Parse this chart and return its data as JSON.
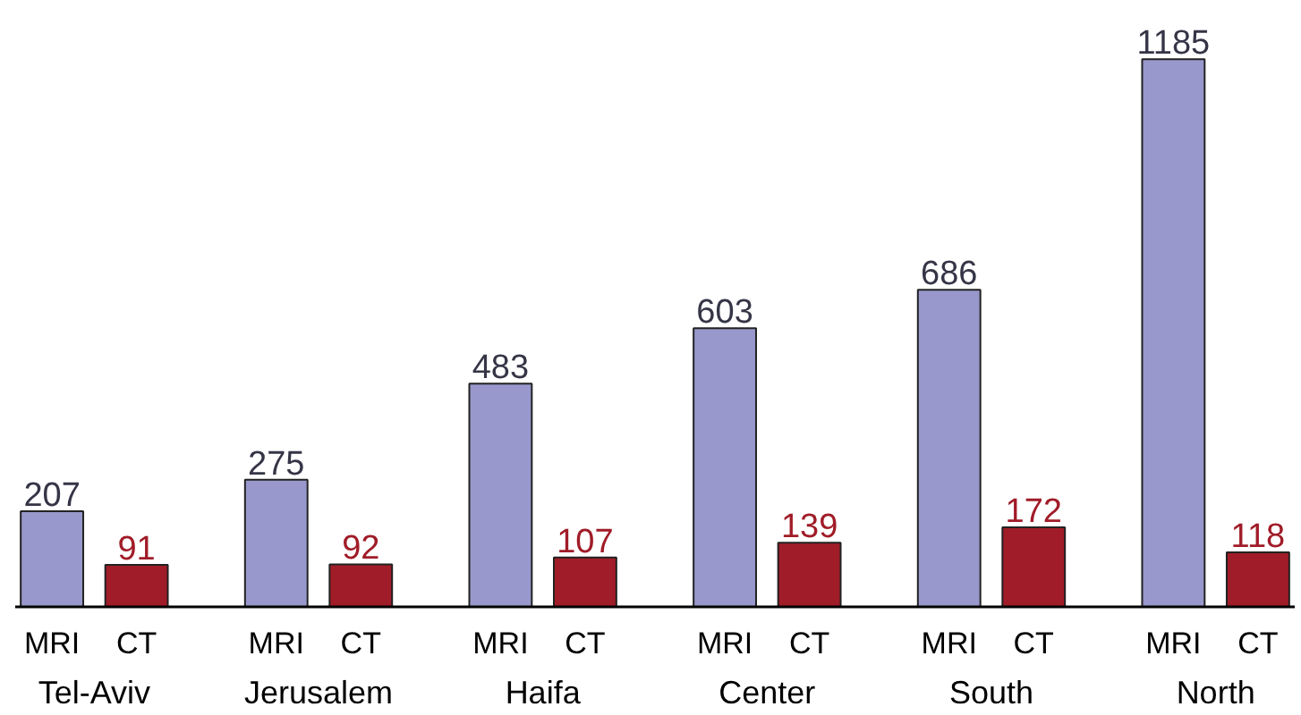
{
  "chart_data": {
    "type": "bar",
    "categories": [
      "Tel-Aviv",
      "Jerusalem",
      "Haifa",
      "Center",
      "South",
      "North"
    ],
    "series": [
      {
        "name": "MRI",
        "color": "#9898cc",
        "values": [
          207,
          275,
          483,
          603,
          686,
          1185
        ]
      },
      {
        "name": "CT",
        "color": "#a01c28",
        "values": [
          91,
          92,
          107,
          139,
          172,
          118
        ]
      }
    ],
    "data_labels": true,
    "grid": false
  }
}
